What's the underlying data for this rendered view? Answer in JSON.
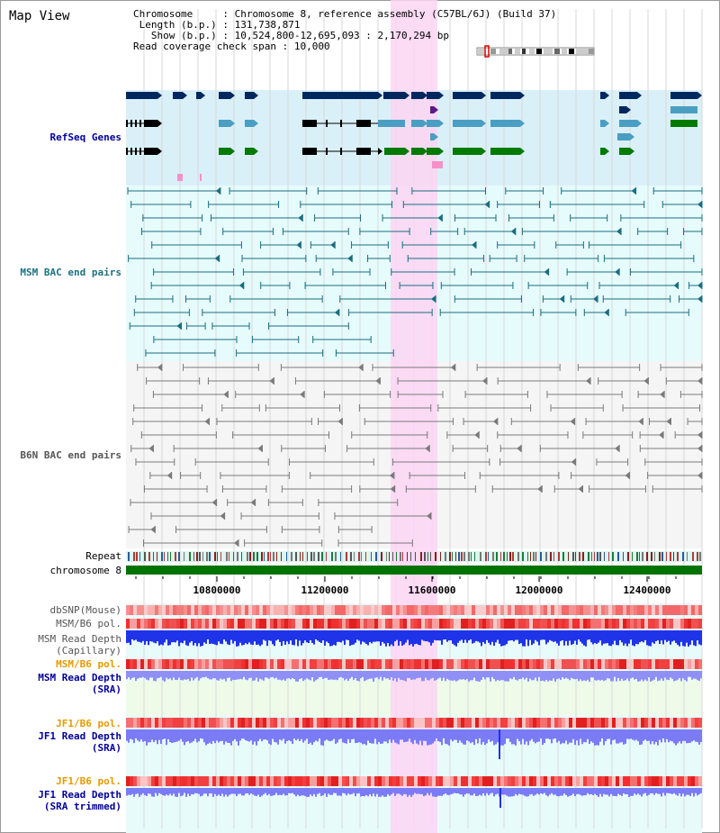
{
  "title": "Map View",
  "info": {
    "chromosome_label": "Chromosome",
    "chromosome_value": "Chromosome 8, reference assembly (C57BL/6J) (Build 37)",
    "length_label": "Length (b.p.)",
    "length_value": "131,738,871",
    "show_label": "Show (b.p.)",
    "show_value": "10,524,800-12,695,093 : 2,170,294 bp",
    "coverage_label": "Read coverage check span",
    "coverage_value": "10,000"
  },
  "tracks": {
    "refseq": "RefSeq Genes",
    "msm_bac": "MSM BAC end pairs",
    "b6n_bac": "B6N BAC end pairs",
    "repeat": "Repeat",
    "chromosome": "chromosome 8",
    "dbsnp": "dbSNP(Mouse)",
    "msm_b6_pol": "MSM/B6 pol.",
    "msm_depth_cap_1": "MSM Read Depth",
    "msm_depth_cap_2": "(Capillary)",
    "msm_b6_pol2": "MSM/B6 pol.",
    "msm_depth_sra_1": "MSM Read Depth",
    "msm_depth_sra_2": "(SRA)",
    "jf1_b6_pol": "JF1/B6 pol.",
    "jf1_depth_sra_1": "JF1 Read Depth",
    "jf1_depth_sra_2": "(SRA)",
    "jf1_b6_pol2": "JF1/B6 pol.",
    "jf1_depth_trim_1": "JF1 Read Depth",
    "jf1_depth_trim_2": "(SRA trimmed)"
  },
  "axis": {
    "ticks": [
      "10800000",
      "11200000",
      "11600000",
      "12000000",
      "12400000"
    ]
  },
  "colors": {
    "refseq_bg": "#daf0f9",
    "msm_bg": "#e6fbfb",
    "b6n_bg": "#f5f5f5",
    "highlight": "#fbd5f3",
    "chrom_bar": "#007300",
    "gene_dark": "#00285f",
    "gene_mid": "#4a9ec2",
    "gene_green": "#007b00",
    "msm_pair": "#1a6d80",
    "b6n_pair": "#7a7a7a",
    "depth_blue": "#1f33e8",
    "depth_light": "#7b7bf6",
    "label_blue": "#00009c",
    "label_orange": "#e69900",
    "label_teal": "#20707f",
    "label_gray": "#555555"
  }
}
